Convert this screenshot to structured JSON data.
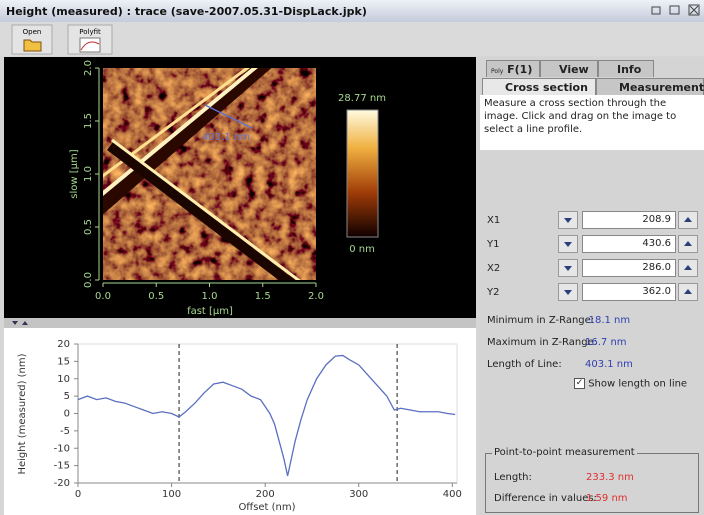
{
  "window": {
    "title": "Height (measured) : trace (save-2007.05.31-DispLack.jpk)"
  },
  "toolbar": {
    "buttons": [
      "Open",
      "Polyfit"
    ]
  },
  "image_view": {
    "x_label": "fast [µm]",
    "y_label": "slow [µm]",
    "xlim": [
      0,
      2
    ],
    "ylim": [
      0,
      2
    ],
    "xticks": [
      {
        "value": 0,
        "label": "0.0"
      },
      0.5,
      {
        "value": 1,
        "label": "1.0"
      },
      1.5,
      {
        "value": 2,
        "label": "2.0"
      }
    ],
    "yticks": [
      {
        "value": 0,
        "label": "0.0"
      },
      0.5,
      {
        "value": 1,
        "label": "1.0"
      },
      1.5,
      {
        "value": 2,
        "label": "2.0"
      }
    ],
    "colorbar_max": "28.77 nm",
    "colorbar_min": "0 nm",
    "line_label": "403.1 nm"
  },
  "chart_data": {
    "type": "line",
    "x_label": "Offset (nm)",
    "y_label": "Height (measured) (nm)",
    "x": [
      0,
      10,
      20,
      30,
      40,
      50,
      60,
      70,
      80,
      90,
      100,
      108,
      115,
      125,
      135,
      145,
      155,
      165,
      175,
      185,
      195,
      200,
      205,
      210,
      215,
      220,
      224,
      228,
      232,
      238,
      245,
      255,
      265,
      275,
      283,
      290,
      300,
      310,
      320,
      330,
      338,
      345,
      355,
      365,
      375,
      385,
      395,
      403
    ],
    "values": [
      4,
      5,
      4,
      4.5,
      3.5,
      3,
      2,
      1,
      0,
      0.5,
      0,
      -1,
      0.5,
      3,
      6,
      8.5,
      9,
      8,
      7,
      5,
      4,
      2,
      0,
      -3,
      -8,
      -13,
      -18,
      -13,
      -8,
      -2,
      4,
      10,
      14,
      16.5,
      16.7,
      15.5,
      14,
      11,
      8,
      5,
      1,
      1.5,
      1,
      0.5,
      0.5,
      0.5,
      0,
      -0.3
    ],
    "color": "#5a6fc0",
    "markers": [
      108,
      341
    ],
    "xlim": [
      0,
      405
    ],
    "ylim": [
      -20,
      20
    ],
    "xticks": [
      0,
      100,
      200,
      300,
      400
    ],
    "yticks": [
      -20,
      -15,
      -10,
      -5,
      0,
      5,
      10,
      15,
      20
    ],
    "grid": false
  },
  "side_panel": {
    "tab_prefix": "Poly",
    "tabs_top": [
      "F(1)",
      "View",
      "Info"
    ],
    "tabs_bottom": [
      "Cross section",
      "Measurement"
    ],
    "description": "Measure a cross section through the image. Click and drag on the image to select a line profile.",
    "fields": [
      {
        "label": "X1",
        "value": "208.9"
      },
      {
        "label": "Y1",
        "value": "430.6"
      },
      {
        "label": "X2",
        "value": "286.0"
      },
      {
        "label": "Y2",
        "value": "362.0"
      }
    ],
    "stats": [
      {
        "label": "Minimum in Z-Range:",
        "value": "-18.1 nm"
      },
      {
        "label": "Maximum in Z-Range:",
        "value": "16.7 nm"
      },
      {
        "label": "Length of Line:",
        "value": "403.1 nm"
      }
    ],
    "checkbox": "Show length on line",
    "group": {
      "title": "Point-to-point measurement",
      "items": [
        {
          "label": "Length:",
          "value": "233.3 nm"
        },
        {
          "label": "Difference in values:",
          "value": "1.59 nm"
        }
      ]
    }
  }
}
